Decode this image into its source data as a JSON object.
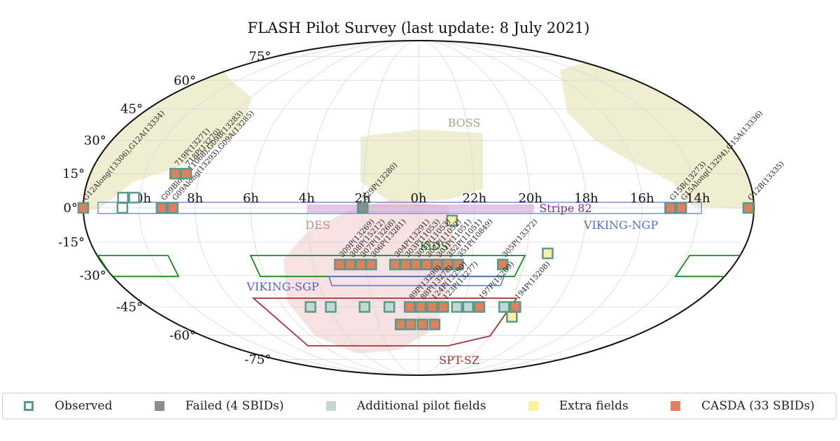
{
  "chart_data": {
    "type": "scatter",
    "title": "FLASH Pilot Survey (last update: 8 July 2021)",
    "projection": "mollweide",
    "ra_tick_labels": [
      {
        "label": "10h",
        "ra_h": 10
      },
      {
        "label": "8h",
        "ra_h": 8
      },
      {
        "label": "6h",
        "ra_h": 6
      },
      {
        "label": "4h",
        "ra_h": 4
      },
      {
        "label": "2h",
        "ra_h": 2
      },
      {
        "label": "0h",
        "ra_h": 0
      },
      {
        "label": "22h",
        "ra_h": 22
      },
      {
        "label": "20h",
        "ra_h": 20
      },
      {
        "label": "18h",
        "ra_h": 18
      },
      {
        "label": "16h",
        "ra_h": 16
      },
      {
        "label": "14h",
        "ra_h": 14
      }
    ],
    "dec_tick_labels": [
      {
        "label": "75°",
        "dec": 75
      },
      {
        "label": "60°",
        "dec": 60
      },
      {
        "label": "45°",
        "dec": 45
      },
      {
        "label": "30°",
        "dec": 30
      },
      {
        "label": "15°",
        "dec": 15
      },
      {
        "label": "0°",
        "dec": 0
      },
      {
        "label": "-15°",
        "dec": -15
      },
      {
        "label": "-30°",
        "dec": -30
      },
      {
        "label": "-45°",
        "dec": -45
      },
      {
        "label": "-60°",
        "dec": -60
      },
      {
        "label": "-75°",
        "dec": -75
      }
    ],
    "survey_regions": [
      {
        "name": "BOSS",
        "color": "#ecebc8"
      },
      {
        "name": "DES",
        "color": "#f2d6d6"
      },
      {
        "name": "Stripe 82",
        "color": "#c070c0"
      },
      {
        "name": "VIKING-NGP",
        "color": "#7890d8"
      },
      {
        "name": "VIKING-SGP",
        "color": "#6070d0"
      },
      {
        "name": "KiDS",
        "color": "#1a8a1a"
      },
      {
        "name": "SPT-SZ",
        "color": "#a83232"
      }
    ],
    "legend": [
      {
        "label": "Observed",
        "key": "observed"
      },
      {
        "label": "Failed (4 SBIDs)",
        "key": "failed"
      },
      {
        "label": "Additional pilot fields",
        "key": "additional"
      },
      {
        "label": "Extra fields",
        "key": "extra"
      },
      {
        "label": "CASDA (33 SBIDs)",
        "key": "casda"
      }
    ],
    "legend_placement": "bottom",
    "colors": {
      "observed_edge": "#5a9a8a",
      "failed": "#8c8c8c",
      "additional": "#c2d9d2",
      "extra": "#faf0a0",
      "casda": "#e27f5c"
    },
    "fields": [
      {
        "ra_h": 12.0,
        "dec": 0,
        "status": "casda",
        "label": "G12Along(13306),G12A(13334)"
      },
      {
        "ra_h": 10.6,
        "dec": 4.5,
        "status": "observed",
        "label": ""
      },
      {
        "ra_h": 10.2,
        "dec": 4.5,
        "status": "observed",
        "label": ""
      },
      {
        "ra_h": 10.6,
        "dec": 0,
        "status": "observed",
        "label": ""
      },
      {
        "ra_h": 9.2,
        "dec": 0,
        "status": "casda",
        "label": "G09Blong(11068),G09B(13283)"
      },
      {
        "ra_h": 8.8,
        "dec": 0,
        "status": "casda",
        "label": "G09Along(13293),G09A(13285)"
      },
      {
        "ra_h": 8.9,
        "dec": 15,
        "status": "casda",
        "label": "719P(13271)"
      },
      {
        "ra_h": 8.5,
        "dec": 15,
        "status": "casda",
        "label": "718P(13270)"
      },
      {
        "ra_h": 2.0,
        "dec": 0,
        "status": "failed",
        "label": "529P(13280)"
      },
      {
        "ra_h": 22.8,
        "dec": -5.5,
        "status": "extra",
        "label": ""
      },
      {
        "ra_h": 15.0,
        "dec": 0,
        "status": "casda",
        "label": "G15B(13273)"
      },
      {
        "ra_h": 14.6,
        "dec": 0,
        "status": "casda",
        "label": "G15Along(13294),G15A(13336)"
      },
      {
        "ra_h": 12.2,
        "dec": 0,
        "status": "casda",
        "label": "G12B(13335)"
      },
      {
        "ra_h": 3.0,
        "dec": -25,
        "status": "casda",
        "label": "309P(13269)"
      },
      {
        "ra_h": 2.6,
        "dec": -25,
        "status": "casda",
        "label": "308P(15212)"
      },
      {
        "ra_h": 2.2,
        "dec": -25,
        "status": "casda",
        "label": "307P(13268)"
      },
      {
        "ra_h": 1.8,
        "dec": -25,
        "status": "casda",
        "label": "306P(13281)"
      },
      {
        "ra_h": 0.9,
        "dec": -25,
        "status": "casda",
        "label": "304P(13291)"
      },
      {
        "ra_h": 0.5,
        "dec": -25,
        "status": "casda",
        "label": "303P(11053)"
      },
      {
        "ra_h": 0.1,
        "dec": -25,
        "status": "casda",
        "label": "303P(11053)"
      },
      {
        "ra_h": 23.7,
        "dec": -25,
        "status": "casda",
        "label": "302P(11052)"
      },
      {
        "ra_h": 23.3,
        "dec": -25,
        "status": "casda",
        "label": "301P(11051)"
      },
      {
        "ra_h": 22.9,
        "dec": -25,
        "status": "casda",
        "label": "352P(11051)"
      },
      {
        "ra_h": 22.5,
        "dec": -25,
        "status": "casda",
        "label": "351P(10849)"
      },
      {
        "ra_h": 20.8,
        "dec": -25,
        "status": "casda",
        "label": "305P(13372)"
      },
      {
        "ra_h": 19.2,
        "dec": -20,
        "status": "extra",
        "label": ""
      },
      {
        "ra_h": 4.8,
        "dec": -45,
        "status": "additional",
        "label": ""
      },
      {
        "ra_h": 3.9,
        "dec": -45,
        "status": "additional",
        "label": ""
      },
      {
        "ra_h": 2.4,
        "dec": -45,
        "status": "additional",
        "label": ""
      },
      {
        "ra_h": 1.3,
        "dec": -45,
        "status": "additional",
        "label": ""
      },
      {
        "ra_h": 0.4,
        "dec": -45,
        "status": "casda",
        "label": "89P(13290)"
      },
      {
        "ra_h": 23.9,
        "dec": -45,
        "status": "casda",
        "label": "88P(13278)"
      },
      {
        "ra_h": 23.4,
        "dec": -45,
        "status": "casda",
        "label": "124P(13290)"
      },
      {
        "ra_h": 22.9,
        "dec": -45,
        "status": "casda",
        "label": "123P(13277)"
      },
      {
        "ra_h": 22.3,
        "dec": -45,
        "status": "additional",
        "label": ""
      },
      {
        "ra_h": 21.8,
        "dec": -45,
        "status": "additional",
        "label": ""
      },
      {
        "ra_h": 21.3,
        "dec": -45,
        "status": "casda",
        "label": "197P(15209)"
      },
      {
        "ra_h": 20.2,
        "dec": -45,
        "status": "additional",
        "label": ""
      },
      {
        "ra_h": 19.7,
        "dec": -45,
        "status": "casda",
        "label": "194P(15208)"
      },
      {
        "ra_h": 19.6,
        "dec": -50,
        "status": "extra",
        "label": ""
      },
      {
        "ra_h": 0.9,
        "dec": -54,
        "status": "casda",
        "label": ""
      },
      {
        "ra_h": 0.4,
        "dec": -54,
        "status": "casda",
        "label": ""
      },
      {
        "ra_h": 23.8,
        "dec": -54,
        "status": "casda",
        "label": ""
      },
      {
        "ra_h": 23.2,
        "dec": -54,
        "status": "casda",
        "label": ""
      }
    ]
  }
}
